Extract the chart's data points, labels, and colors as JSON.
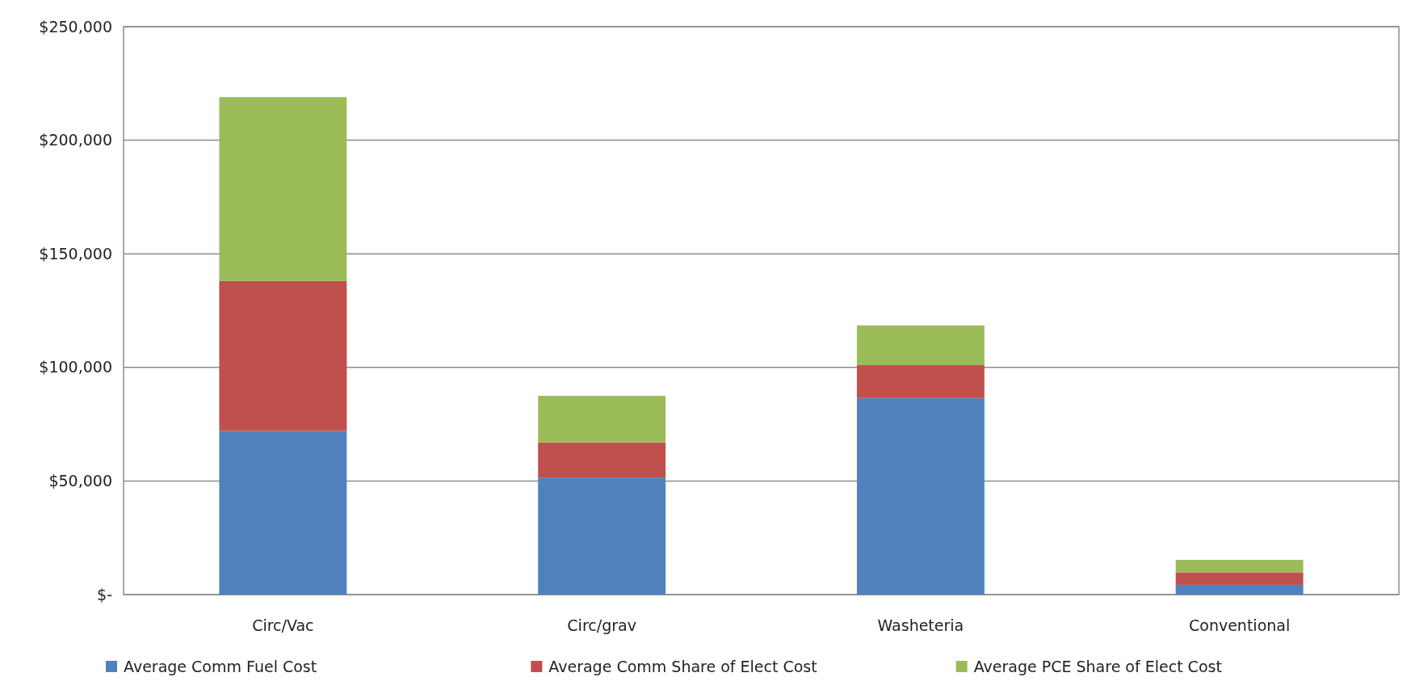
{
  "chart_data": {
    "type": "bar",
    "stacked": true,
    "categories": [
      "Circ/Vac",
      "Circ/grav",
      "Washeteria",
      "Conventional"
    ],
    "series": [
      {
        "name": "Average Comm Fuel Cost",
        "color": "#4f81bd",
        "values": [
          72000,
          51500,
          86500,
          4300
        ]
      },
      {
        "name": "Average Comm Share of Elect Cost",
        "color": "#c0504d",
        "values": [
          66000,
          15500,
          14500,
          5500
        ]
      },
      {
        "name": "Average PCE Share of Elect Cost",
        "color": "#9bbb59",
        "values": [
          81000,
          20500,
          17500,
          5500
        ]
      }
    ],
    "ylim": [
      0,
      250000
    ],
    "yticks": [
      {
        "value": 0,
        "label": "$-"
      },
      {
        "value": 50000,
        "label": "$50,000"
      },
      {
        "value": 100000,
        "label": "$100,000"
      },
      {
        "value": 150000,
        "label": "$150,000"
      },
      {
        "value": 200000,
        "label": "$200,000"
      },
      {
        "value": 250000,
        "label": "$250,000"
      }
    ],
    "grid": "y",
    "legend": "bottom"
  }
}
